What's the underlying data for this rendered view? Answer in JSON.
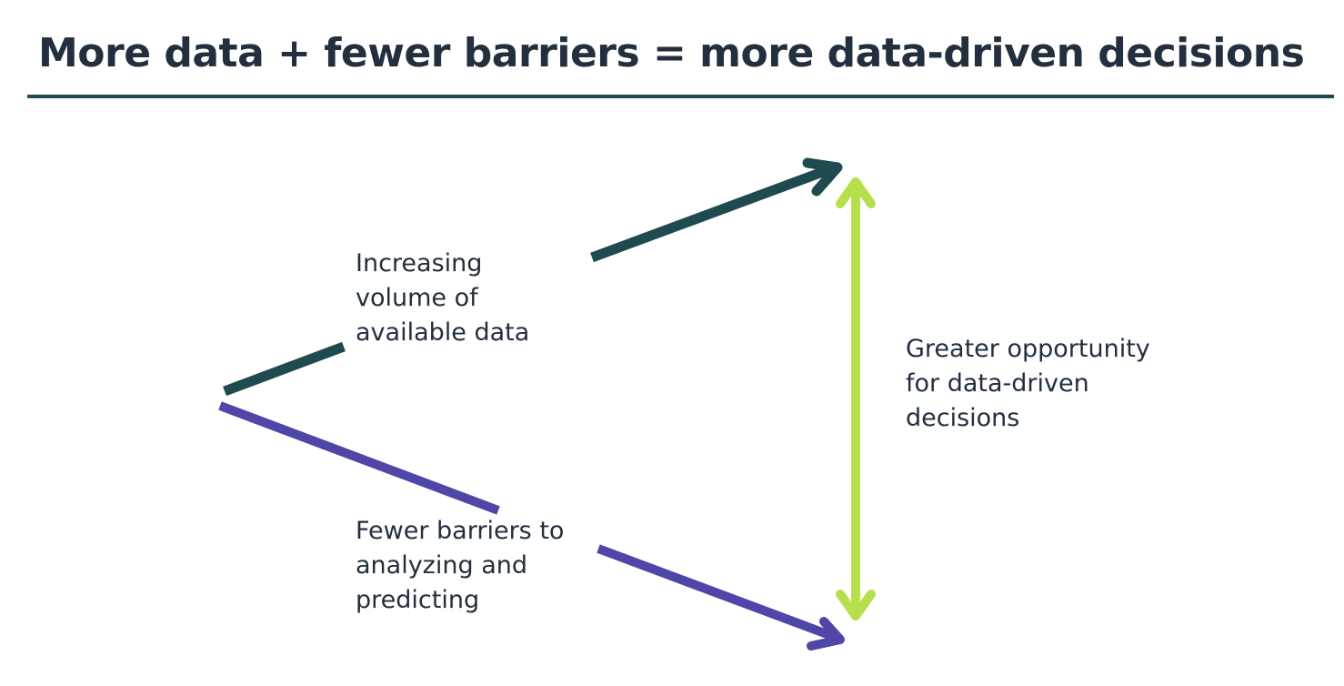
{
  "title": "More data + fewer barriers = more data-driven decisions",
  "colors": {
    "title_text": "#232f3e",
    "title_rule": "#1f4a4f",
    "volume_arrow": "#1f4a4f",
    "barriers_arrow": "#5046a8",
    "opportunity_arrow": "#b5e04c"
  },
  "labels": {
    "volume": [
      "Increasing",
      "volume of",
      "available data"
    ],
    "barriers": [
      "Fewer barriers to",
      "analyzing and",
      "predicting"
    ],
    "opportunity": [
      "Greater opportunity",
      "for data-driven",
      "decisions"
    ]
  }
}
